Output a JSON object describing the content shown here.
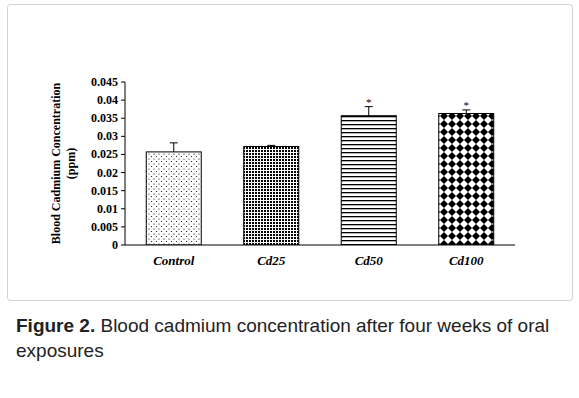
{
  "chart_data": {
    "type": "bar",
    "y_label": [
      "Blood Cadmium  Concentration",
      "(ppm)"
    ],
    "categories": [
      "Control",
      "Cd25",
      "Cd50",
      "Cd100"
    ],
    "values": [
      0.0257,
      0.0272,
      0.0357,
      0.0363
    ],
    "errors": [
      0.0025,
      0.0003,
      0.0025,
      0.001
    ],
    "significance": [
      null,
      null,
      "*",
      "*"
    ],
    "color": "#000000",
    "ylim": [
      0,
      0.045
    ],
    "yticks": [
      0,
      0.005,
      0.01,
      0.015,
      0.02,
      0.025,
      0.03,
      0.035,
      0.04,
      0.045
    ],
    "grid": false,
    "figure_label": "Figure 2.",
    "caption": "Blood cadmium concentration after four weeks of oral exposures"
  }
}
